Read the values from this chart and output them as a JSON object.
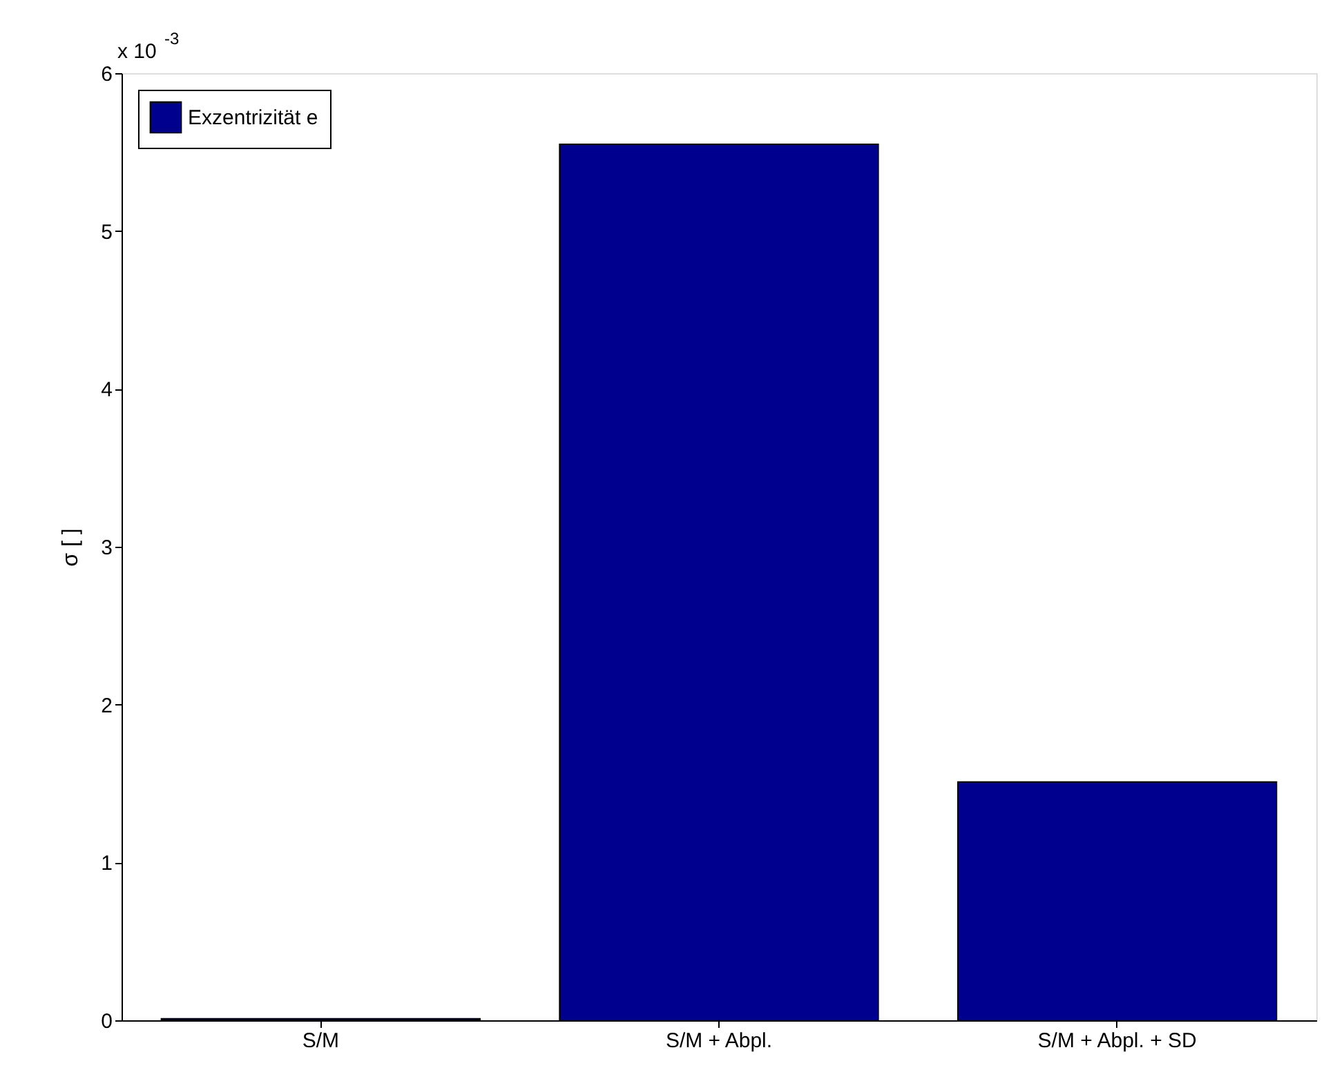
{
  "chart_data": {
    "type": "bar",
    "categories": [
      "S/M",
      "S/M + Abpl.",
      "S/M + Abpl. + SD"
    ],
    "series": [
      {
        "name": "Exzentrizität e",
        "color": "#00008f",
        "values": [
          0.01,
          5.55,
          1.51
        ]
      }
    ],
    "ylabel": "σ [ ]",
    "ylim": [
      0,
      6
    ],
    "yticks": [
      0,
      1,
      2,
      3,
      4,
      5,
      6
    ],
    "annotations": [
      "x 10$^{-3}$"
    ],
    "legend": "top left",
    "grid": false
  }
}
